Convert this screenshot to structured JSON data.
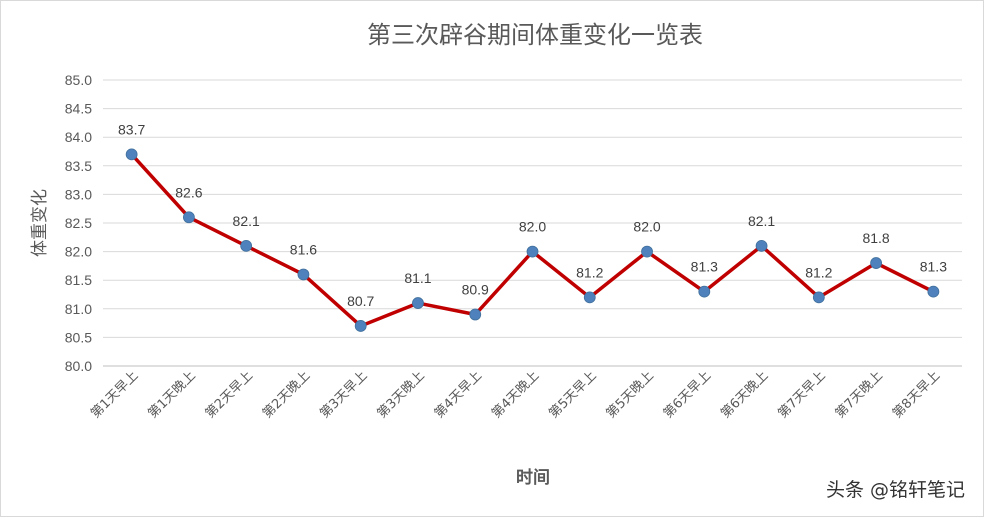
{
  "chart_data": {
    "type": "line",
    "title": "第三次辟谷期间体重变化一览表",
    "xlabel": "时间",
    "ylabel": "体重变化",
    "categories": [
      "第1天早上",
      "第1天晚上",
      "第2天早上",
      "第2天晚上",
      "第3天早上",
      "第3天晚上",
      "第4天早上",
      "第4天晚上",
      "第5天早上",
      "第5天晚上",
      "第6天早上",
      "第6天晚上",
      "第7天早上",
      "第7天晚上",
      "第8天早上"
    ],
    "series": [
      {
        "values": [
          83.7,
          82.6,
          82.1,
          81.6,
          80.7,
          81.1,
          80.9,
          82.0,
          81.2,
          82.0,
          81.3,
          82.1,
          81.2,
          81.8,
          81.3
        ]
      }
    ],
    "ylim": [
      80.0,
      85.0
    ],
    "yticks": [
      "80.0",
      "80.5",
      "81.0",
      "81.5",
      "82.0",
      "82.5",
      "83.0",
      "83.5",
      "84.0",
      "84.5",
      "85.0"
    ],
    "data_labels": [
      "83.7",
      "82.6",
      "82.1",
      "81.6",
      "80.7",
      "81.1",
      "80.9",
      "82.0",
      "81.2",
      "82.0",
      "81.3",
      "82.1",
      "81.2",
      "81.8",
      "81.3"
    ],
    "grid": true,
    "line_color": "#C00000",
    "marker_color": "#4F81BD"
  },
  "watermark": "头条 @铭轩笔记"
}
